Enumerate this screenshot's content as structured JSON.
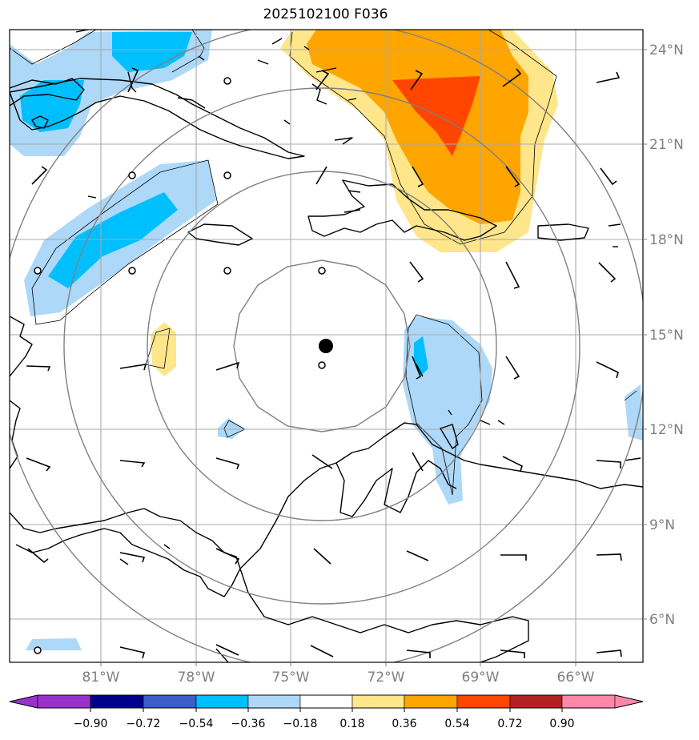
{
  "title": "2025102100 F036",
  "latitude_labels": [
    "24°N",
    "21°N",
    "18°N",
    "15°N",
    "12°N",
    "9°N",
    "6°N"
  ],
  "longitude_labels": [
    "81°W",
    "78°W",
    "75°W",
    "72°W",
    "69°W",
    "66°W"
  ],
  "colorbar": {
    "tick_labels": [
      "−0.90",
      "−0.72",
      "−0.54",
      "−0.36",
      "−0.18",
      "0.18",
      "0.36",
      "0.54",
      "0.72",
      "0.90"
    ],
    "colors": [
      "#9932cc",
      "#00008b",
      "#3d5ccc",
      "#00bfff",
      "#add8f8",
      "#ffffff",
      "#ffe68a",
      "#ffa500",
      "#ff4500",
      "#b22222",
      "#ff88aa"
    ]
  },
  "center_marker": {
    "lat": 14.6,
    "lon": -74.0
  },
  "colors": {
    "grid": "#a9a9a9",
    "range_rings": "#808080",
    "coastline": "#000000"
  }
}
